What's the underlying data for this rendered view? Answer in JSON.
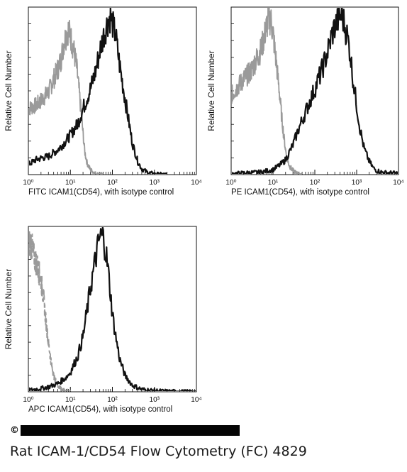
{
  "caption": "Rat ICAM-1/CD54 Flow Cytometry (FC) 4829",
  "colors": {
    "control": "#9a9a9a",
    "sample": "#111111",
    "frame": "#111111"
  },
  "chart_data": [
    {
      "type": "line",
      "x_scale": "log",
      "xlim": [
        1,
        10000
      ],
      "x_ticks": [
        "10⁰",
        "10¹",
        "10²",
        "10³",
        "10⁴"
      ],
      "xlabel": "FITC  ICAM1(CD54),  with isotype control",
      "ylabel": "Relative Cell Number",
      "ylim": [
        0,
        100
      ],
      "series": [
        {
          "role": "isotype-control",
          "color": "#9a9a9a",
          "style": "solid",
          "x": [
            1,
            1.5,
            2,
            3,
            4,
            5,
            6,
            7,
            8,
            9,
            10,
            12,
            14,
            16,
            18,
            20,
            22,
            25,
            30,
            35,
            40,
            50,
            60
          ],
          "y": [
            40,
            42,
            45,
            50,
            58,
            64,
            70,
            80,
            85,
            88,
            84,
            76,
            66,
            52,
            38,
            25,
            14,
            7,
            3,
            1.5,
            0.6,
            0.2,
            0
          ]
        },
        {
          "role": "ICAM1-stained",
          "color": "#111111",
          "style": "solid",
          "x": [
            1,
            1.5,
            2,
            3,
            5,
            7,
            10,
            15,
            20,
            30,
            40,
            50,
            60,
            70,
            80,
            90,
            100,
            120,
            150,
            200,
            250,
            300,
            400,
            500,
            700,
            1000,
            1500,
            2000
          ],
          "y": [
            6,
            9,
            10,
            11,
            15,
            19,
            24,
            31,
            40,
            52,
            63,
            75,
            83,
            89,
            94,
            96,
            92,
            84,
            66,
            46,
            31,
            19,
            8,
            3.5,
            1.2,
            0.4,
            0.1,
            0
          ]
        }
      ]
    },
    {
      "type": "line",
      "x_scale": "log",
      "xlim": [
        1,
        10000
      ],
      "x_ticks": [
        "10⁰",
        "10¹",
        "10²",
        "10³",
        "10⁴"
      ],
      "xlabel": "PE  ICAM1(CD54),  with isotype control",
      "ylabel": "Relative Cell Number",
      "ylim": [
        0,
        100
      ],
      "series": [
        {
          "role": "isotype-control",
          "color": "#9a9a9a",
          "style": "solid",
          "x": [
            1,
            1.5,
            2,
            3,
            4,
            5,
            6,
            7,
            8,
            9,
            10,
            12,
            14,
            16,
            18,
            20,
            22,
            25,
            30,
            35,
            40,
            50
          ],
          "y": [
            48,
            54,
            58,
            63,
            70,
            75,
            82,
            90,
            95,
            93,
            86,
            68,
            52,
            36,
            24,
            15,
            9,
            5,
            2.5,
            1.2,
            0.5,
            0
          ]
        },
        {
          "role": "ICAM1-stained",
          "color": "#111111",
          "style": "solid",
          "x": [
            1,
            2,
            5,
            10,
            15,
            20,
            30,
            40,
            60,
            80,
            100,
            150,
            200,
            250,
            300,
            400,
            450,
            500,
            600,
            700,
            800,
            1000,
            1200,
            1500,
            2000,
            2500,
            3000,
            4000,
            5000,
            7000,
            10000
          ],
          "y": [
            0.5,
            1,
            1.5,
            3,
            6,
            9,
            18,
            27,
            38,
            46,
            52,
            64,
            74,
            84,
            90,
            96,
            97,
            92,
            84,
            74,
            60,
            42,
            28,
            16,
            8,
            4,
            2.5,
            1.5,
            1.2,
            1,
            0.8
          ]
        }
      ]
    },
    {
      "type": "line",
      "x_scale": "log",
      "xlim": [
        1,
        10000
      ],
      "x_ticks": [
        "10⁰",
        "10¹",
        "10²",
        "10³",
        "10⁴"
      ],
      "xlabel": "APC ICAM1(CD54), with isotype control",
      "ylabel": "Relative Cell Number",
      "ylim": [
        0,
        100
      ],
      "series": [
        {
          "role": "isotype-control",
          "color": "#9a9a9a",
          "style": "dashed",
          "x": [
            1,
            1.1,
            1.2,
            1.3,
            1.5,
            1.7,
            2,
            2.3,
            2.6,
            3,
            3.5,
            4,
            5,
            6,
            8,
            10
          ],
          "y": [
            88,
            92,
            90,
            85,
            80,
            76,
            68,
            58,
            44,
            30,
            18,
            10,
            4,
            1.5,
            0.5,
            0
          ]
        },
        {
          "role": "ICAM1-stained",
          "color": "#111111",
          "style": "solid",
          "x": [
            1,
            2,
            3,
            5,
            8,
            10,
            15,
            20,
            25,
            30,
            40,
            50,
            60,
            70,
            80,
            90,
            100,
            120,
            150,
            200,
            300,
            500,
            1000,
            2000,
            5000,
            10000
          ],
          "y": [
            1,
            2,
            3,
            5,
            9,
            12,
            22,
            34,
            50,
            64,
            82,
            95,
            96,
            86,
            74,
            60,
            48,
            34,
            20,
            10,
            4,
            1.5,
            0.7,
            0.3,
            0.1,
            0
          ]
        }
      ]
    }
  ]
}
